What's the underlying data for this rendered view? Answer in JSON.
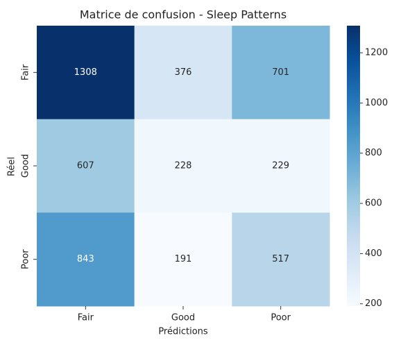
{
  "chart_data": {
    "type": "heatmap",
    "title": "Matrice de confusion - Sleep Patterns",
    "xlabel": "Prédictions",
    "ylabel": "Réel",
    "x_categories": [
      "Fair",
      "Good",
      "Poor"
    ],
    "y_categories": [
      "Fair",
      "Good",
      "Poor"
    ],
    "values": [
      [
        1308,
        376,
        701
      ],
      [
        607,
        228,
        229
      ],
      [
        843,
        191,
        517
      ]
    ],
    "colormap": "Blues",
    "clim": [
      191,
      1308
    ],
    "cticks": [
      200,
      400,
      600,
      800,
      1000,
      1200
    ]
  }
}
